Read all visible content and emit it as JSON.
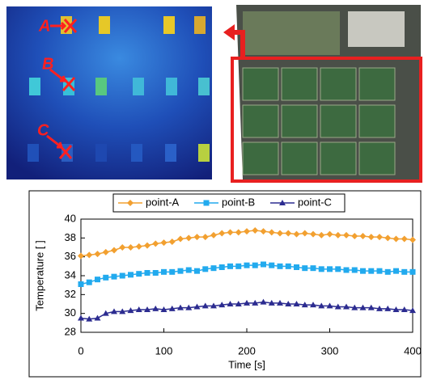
{
  "image_labels": [
    "A",
    "B",
    "C"
  ],
  "chart_data": {
    "type": "line",
    "xlabel": "Time [s]",
    "ylabel": "Temperature [ ]",
    "x": [
      0,
      10,
      20,
      30,
      40,
      50,
      60,
      70,
      80,
      90,
      100,
      110,
      120,
      130,
      140,
      150,
      160,
      170,
      180,
      190,
      200,
      210,
      220,
      230,
      240,
      250,
      260,
      270,
      280,
      290,
      300,
      310,
      320,
      330,
      340,
      350,
      360,
      370,
      380,
      390,
      400
    ],
    "series": [
      {
        "name": "point-A",
        "color": "#f2a030",
        "marker": "diamond",
        "values": [
          36.1,
          36.2,
          36.3,
          36.5,
          36.7,
          37.0,
          37.0,
          37.1,
          37.2,
          37.4,
          37.5,
          37.6,
          37.9,
          38.0,
          38.1,
          38.1,
          38.3,
          38.5,
          38.6,
          38.6,
          38.7,
          38.8,
          38.7,
          38.6,
          38.5,
          38.5,
          38.4,
          38.5,
          38.4,
          38.3,
          38.4,
          38.3,
          38.3,
          38.2,
          38.2,
          38.1,
          38.1,
          38.0,
          37.9,
          37.9,
          37.8
        ]
      },
      {
        "name": "point-B",
        "color": "#22aaee",
        "marker": "square",
        "values": [
          33.1,
          33.3,
          33.6,
          33.8,
          33.9,
          34.0,
          34.1,
          34.2,
          34.3,
          34.3,
          34.4,
          34.4,
          34.5,
          34.6,
          34.5,
          34.7,
          34.8,
          34.9,
          35.0,
          35.0,
          35.1,
          35.1,
          35.2,
          35.1,
          35.0,
          35.0,
          34.9,
          34.8,
          34.8,
          34.7,
          34.7,
          34.7,
          34.6,
          34.6,
          34.5,
          34.5,
          34.5,
          34.4,
          34.5,
          34.4,
          34.4
        ]
      },
      {
        "name": "point-C",
        "color": "#2c2c90",
        "marker": "triangle",
        "values": [
          29.5,
          29.4,
          29.5,
          30.0,
          30.2,
          30.2,
          30.3,
          30.4,
          30.4,
          30.5,
          30.4,
          30.5,
          30.6,
          30.6,
          30.7,
          30.8,
          30.8,
          30.9,
          31.0,
          31.0,
          31.1,
          31.1,
          31.2,
          31.1,
          31.1,
          31.0,
          31.0,
          30.9,
          30.9,
          30.8,
          30.8,
          30.7,
          30.7,
          30.6,
          30.6,
          30.6,
          30.5,
          30.5,
          30.4,
          30.4,
          30.3
        ]
      }
    ],
    "xlim": [
      0,
      400
    ],
    "xticks": [
      0,
      100,
      200,
      300,
      400
    ],
    "ylim": [
      28,
      40
    ],
    "yticks": [
      28,
      30,
      32,
      34,
      36,
      38,
      40
    ],
    "legend": "top"
  }
}
